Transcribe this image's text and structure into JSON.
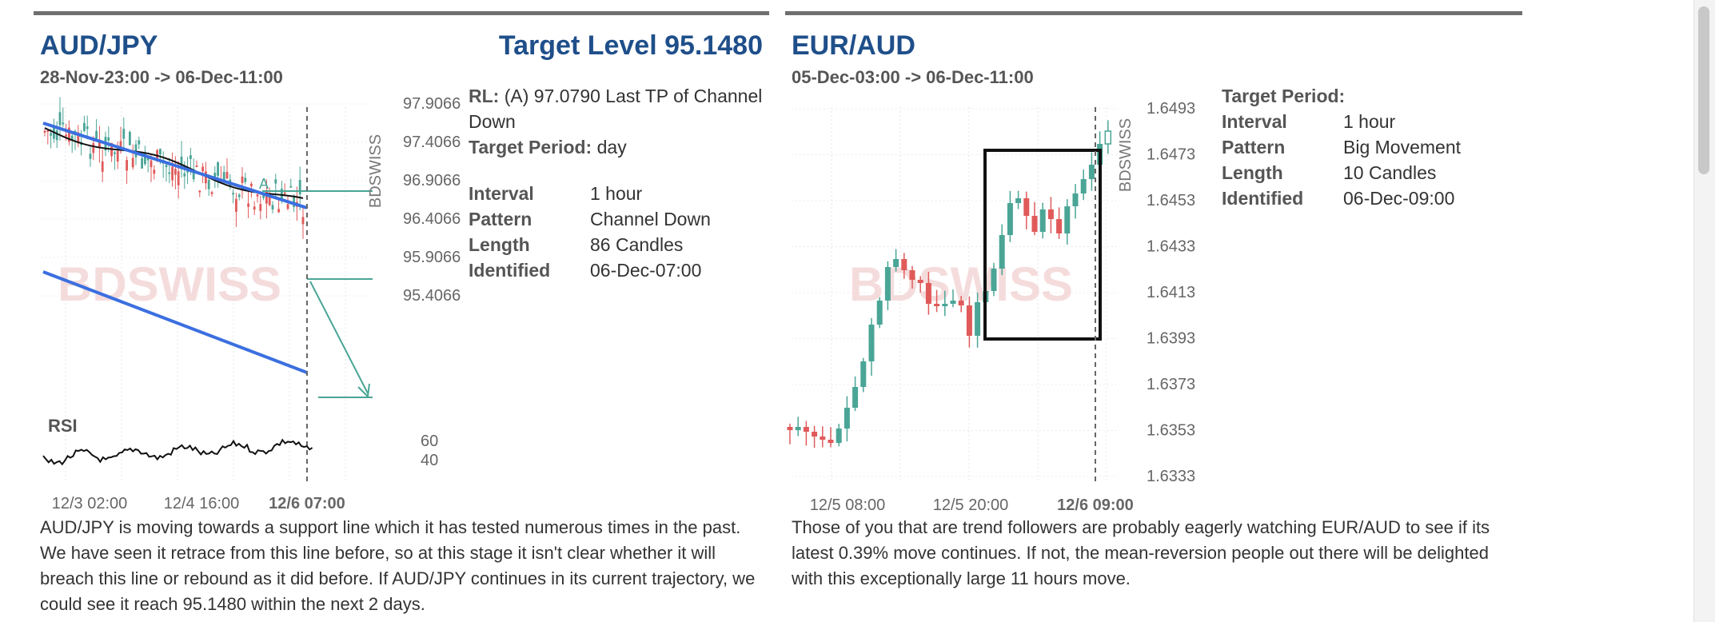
{
  "left": {
    "pair": "AUD/JPY",
    "target_level": "Target Level 95.1480",
    "date_range": "28-Nov-23:00 -> 06-Dec-11:00",
    "watermark": "BDSWISS",
    "brand_vertical": "BDSWISS",
    "y_ticks": [
      "97.9066",
      "97.4066",
      "96.9066",
      "96.4066",
      "95.9066",
      "95.4066"
    ],
    "rsi_label": "RSI",
    "rsi_ticks": [
      "60",
      "40"
    ],
    "x_ticks": [
      "12/3 02:00",
      "12/4 16:00",
      "12/6 07:00"
    ],
    "point_label": "A",
    "info": {
      "rl_label": "RL:",
      "rl_value": "(A) 97.0790 Last TP of Channel Down",
      "target_period_label": "Target Period:",
      "target_period_value": "day",
      "rows": [
        {
          "k": "Interval",
          "v": "1 hour"
        },
        {
          "k": "Pattern",
          "v": "Channel Down"
        },
        {
          "k": "Length",
          "v": "86 Candles"
        },
        {
          "k": "Identified",
          "v": "06-Dec-07:00"
        }
      ]
    },
    "description": "AUD/JPY is moving towards a support line which it has tested numerous times in the past. We have seen it retrace from this line before, so at this stage it isn't clear whether it will breach this line or rebound as it did before. If AUD/JPY continues in its current trajectory, we could see it reach 95.1480 within the next 2 days."
  },
  "right": {
    "pair": "EUR/AUD",
    "date_range": "05-Dec-03:00 -> 06-Dec-11:00",
    "watermark": "BDSWISS",
    "brand_vertical": "BDSWISS",
    "y_ticks": [
      "1.6493",
      "1.6473",
      "1.6453",
      "1.6433",
      "1.6413",
      "1.6393",
      "1.6373",
      "1.6353",
      "1.6333"
    ],
    "x_ticks": [
      "12/5 08:00",
      "12/5 20:00",
      "12/6 09:00"
    ],
    "info": {
      "target_period_label": "Target Period:",
      "rows": [
        {
          "k": "Interval",
          "v": "1 hour"
        },
        {
          "k": "Pattern",
          "v": "Big Movement"
        },
        {
          "k": "Length",
          "v": "10 Candles"
        },
        {
          "k": "Identified",
          "v": "06-Dec-09:00"
        }
      ]
    },
    "description": "Those of you that are trend followers are probably eagerly watching EUR/AUD to see if its latest 0.39% move continues. If not, the mean-reversion people out there will be delighted with this exceptionally large 11 hours move."
  },
  "colors": {
    "up": "#4aa596",
    "down": "#e05a5a",
    "title": "#1f4f8a",
    "trend": "#3b6fe0",
    "target": "#4aa596"
  }
}
